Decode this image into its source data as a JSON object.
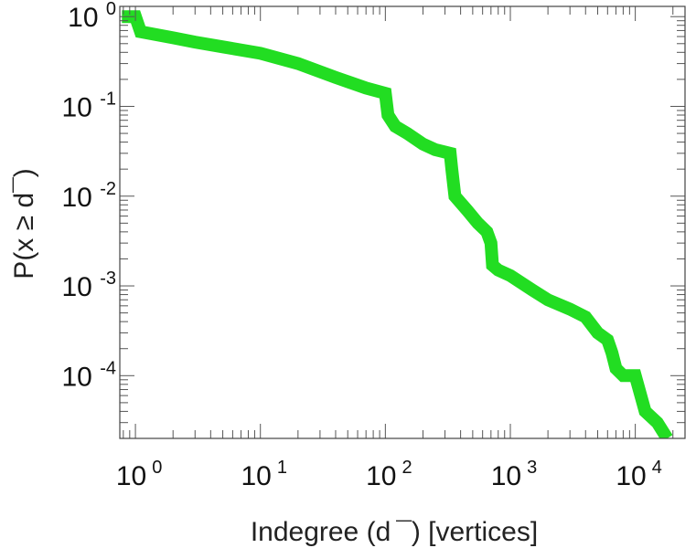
{
  "chart_data": {
    "type": "line",
    "xlabel": "Indegree (d ¯) [vertices]",
    "ylabel": "P(x ≥ d¯)",
    "xscale": "log",
    "yscale": "log",
    "xlim": [
      0.75,
      25000
    ],
    "ylim": [
      2e-05,
      1.3
    ],
    "grid": false,
    "legend": "none",
    "x_ticks": [
      {
        "base": "10",
        "exp": "0",
        "value": 1
      },
      {
        "base": "10",
        "exp": "1",
        "value": 10
      },
      {
        "base": "10",
        "exp": "2",
        "value": 100
      },
      {
        "base": "10",
        "exp": "3",
        "value": 1000
      },
      {
        "base": "10",
        "exp": "4",
        "value": 10000
      }
    ],
    "y_ticks": [
      {
        "base": "10",
        "exp": "0",
        "value": 1
      },
      {
        "base": "10",
        "exp": "-1",
        "value": 0.1
      },
      {
        "base": "10",
        "exp": "-2",
        "value": 0.01
      },
      {
        "base": "10",
        "exp": "-3",
        "value": 0.001
      },
      {
        "base": "10",
        "exp": "-4",
        "value": 0.0001
      }
    ],
    "series": [
      {
        "color": "#22dd22",
        "x": [
          0.78,
          1,
          1.1,
          2,
          3,
          5,
          10,
          20,
          40,
          70,
          100,
          105,
          120,
          150,
          200,
          250,
          330,
          340,
          360,
          450,
          550,
          650,
          700,
          720,
          800,
          1000,
          1500,
          2000,
          3000,
          4000,
          5000,
          6000,
          6500,
          7000,
          8000,
          10000,
          12000,
          15000,
          18000
        ],
        "y": [
          1,
          1,
          0.68,
          0.58,
          0.52,
          0.46,
          0.39,
          0.3,
          0.21,
          0.16,
          0.14,
          0.08,
          0.06,
          0.05,
          0.038,
          0.033,
          0.03,
          0.02,
          0.01,
          0.007,
          0.005,
          0.004,
          0.003,
          0.0017,
          0.0015,
          0.0013,
          0.0009,
          0.0007,
          0.00055,
          0.00045,
          0.0003,
          0.00025,
          0.00018,
          0.00012,
          0.0001,
          0.0001,
          4e-05,
          3e-05,
          2e-05
        ]
      }
    ]
  }
}
